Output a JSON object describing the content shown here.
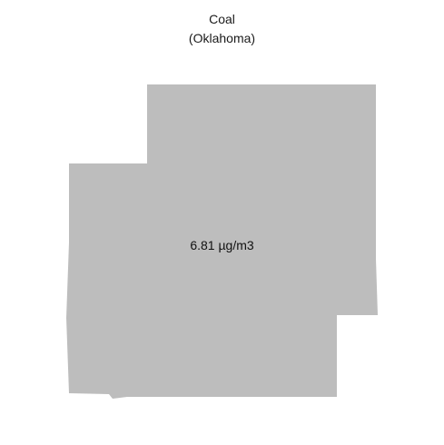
{
  "map": {
    "title": "Coal",
    "subtitle": "(Oklahoma)",
    "region_label": "6.81 µg/m3",
    "fill_color": "#bdbdbd",
    "background_color": "#ffffff"
  }
}
